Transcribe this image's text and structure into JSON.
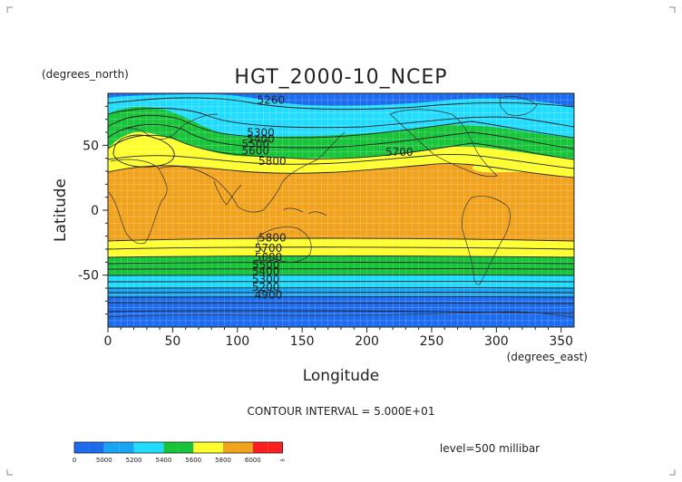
{
  "chart_data": {
    "type": "heatmap",
    "title": "HGT_2000-10_NCEP",
    "xlabel": "Longitude",
    "ylabel": "Latitude",
    "x_units": "(degrees_east)",
    "y_units": "(degrees_north)",
    "xlim": [
      0,
      360
    ],
    "ylim": [
      -90,
      90
    ],
    "x_ticks": [
      "0",
      "50",
      "100",
      "150",
      "200",
      "250",
      "300",
      "350"
    ],
    "y_ticks": [
      "50",
      "0",
      "-50"
    ],
    "contour_interval_text": "CONTOUR INTERVAL = 5.000E+01",
    "level_text": "level=500 millibar",
    "contour_labels": [
      {
        "text": "5260",
        "lon": 126,
        "lat": 82
      },
      {
        "text": "5300",
        "lon": 118,
        "lat": 57
      },
      {
        "text": "5400",
        "lon": 118,
        "lat": 52
      },
      {
        "text": "5500",
        "lon": 114,
        "lat": 48
      },
      {
        "text": "5600",
        "lon": 114,
        "lat": 43
      },
      {
        "text": "5700",
        "lon": 225,
        "lat": 42
      },
      {
        "text": "5800",
        "lon": 127,
        "lat": 35
      },
      {
        "text": "5800",
        "lon": 127,
        "lat": -24
      },
      {
        "text": "5700",
        "lon": 124,
        "lat": -32
      },
      {
        "text": "5600",
        "lon": 124,
        "lat": -39
      },
      {
        "text": "5500",
        "lon": 122,
        "lat": -45
      },
      {
        "text": "5400",
        "lon": 122,
        "lat": -50
      },
      {
        "text": "5300",
        "lon": 122,
        "lat": -56
      },
      {
        "text": "5200",
        "lon": 122,
        "lat": -62
      },
      {
        "text": "4900",
        "lon": 124,
        "lat": -68
      }
    ],
    "colorbar": {
      "bins": [
        {
          "color": "#1d6cf0"
        },
        {
          "color": "#1d6cf0"
        },
        {
          "color": "#19a5f5"
        },
        {
          "color": "#19a5f5"
        },
        {
          "color": "#22dcff"
        },
        {
          "color": "#22dcff"
        },
        {
          "color": "#17c43a"
        },
        {
          "color": "#17c43a"
        },
        {
          "color": "#ffff2e"
        },
        {
          "color": "#ffff2e"
        },
        {
          "color": "#f1a31e"
        },
        {
          "color": "#f1a31e"
        },
        {
          "color": "#ff1e1e"
        },
        {
          "color": "#ff1e1e"
        }
      ],
      "labels": [
        {
          "text": "0",
          "after_bin": 0
        },
        {
          "text": "5000",
          "after_bin": 2
        },
        {
          "text": "5200",
          "after_bin": 4
        },
        {
          "text": "5400",
          "after_bin": 6
        },
        {
          "text": "5600",
          "after_bin": 8
        },
        {
          "text": "5800",
          "after_bin": 10
        },
        {
          "text": "6000",
          "after_bin": 12
        },
        {
          "text": "∞",
          "after_bin": 14
        }
      ]
    }
  }
}
